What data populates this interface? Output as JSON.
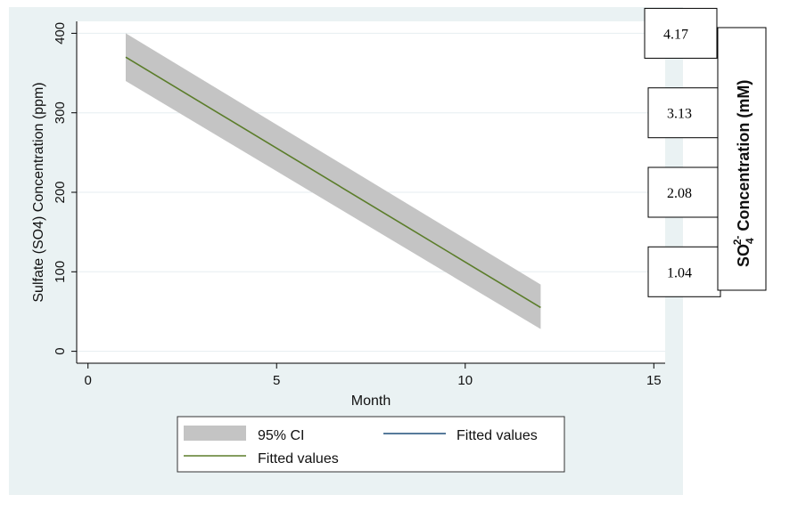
{
  "chart_data": {
    "type": "line",
    "xlabel": "Month",
    "ylabel": "Sulfate (SO4) Concentration (ppm)",
    "xlim": [
      -0.3,
      15.3
    ],
    "ylim": [
      -15,
      415
    ],
    "x_ticks": [
      0,
      5,
      10,
      15
    ],
    "y_ticks": [
      0,
      100,
      200,
      300,
      400
    ],
    "grid": true,
    "legend_position": "bottom",
    "series": [
      {
        "name": "Fitted values",
        "color": "#5b7d2a",
        "x": [
          1,
          12
        ],
        "y": [
          370,
          55
        ]
      }
    ],
    "confidence_band": {
      "name": "95% CI",
      "color": "#c4c4c4",
      "x": [
        1,
        12
      ],
      "lower": [
        340,
        28
      ],
      "upper": [
        400,
        84
      ]
    },
    "legend": [
      {
        "label": "95% CI",
        "kind": "band",
        "color": "#c4c4c4"
      },
      {
        "label": "Fitted values",
        "kind": "line",
        "color": "#1f4f7a"
      },
      {
        "label": "Fitted values",
        "kind": "line",
        "color": "#5b7d2a"
      }
    ],
    "secondary_axis": {
      "label_main": "SO",
      "label_sub": "4",
      "label_sup": "2-",
      "label_rest": " Concentration (mM)",
      "ticks": [
        {
          "label": "4.17",
          "y": 400
        },
        {
          "label": "3.13",
          "y": 300
        },
        {
          "label": "2.08",
          "y": 200
        },
        {
          "label": "1.04",
          "y": 100
        }
      ]
    },
    "colors": {
      "outer_background": "#eaf2f3",
      "plot_background": "#ffffff",
      "grid": "#e6eef0"
    }
  }
}
